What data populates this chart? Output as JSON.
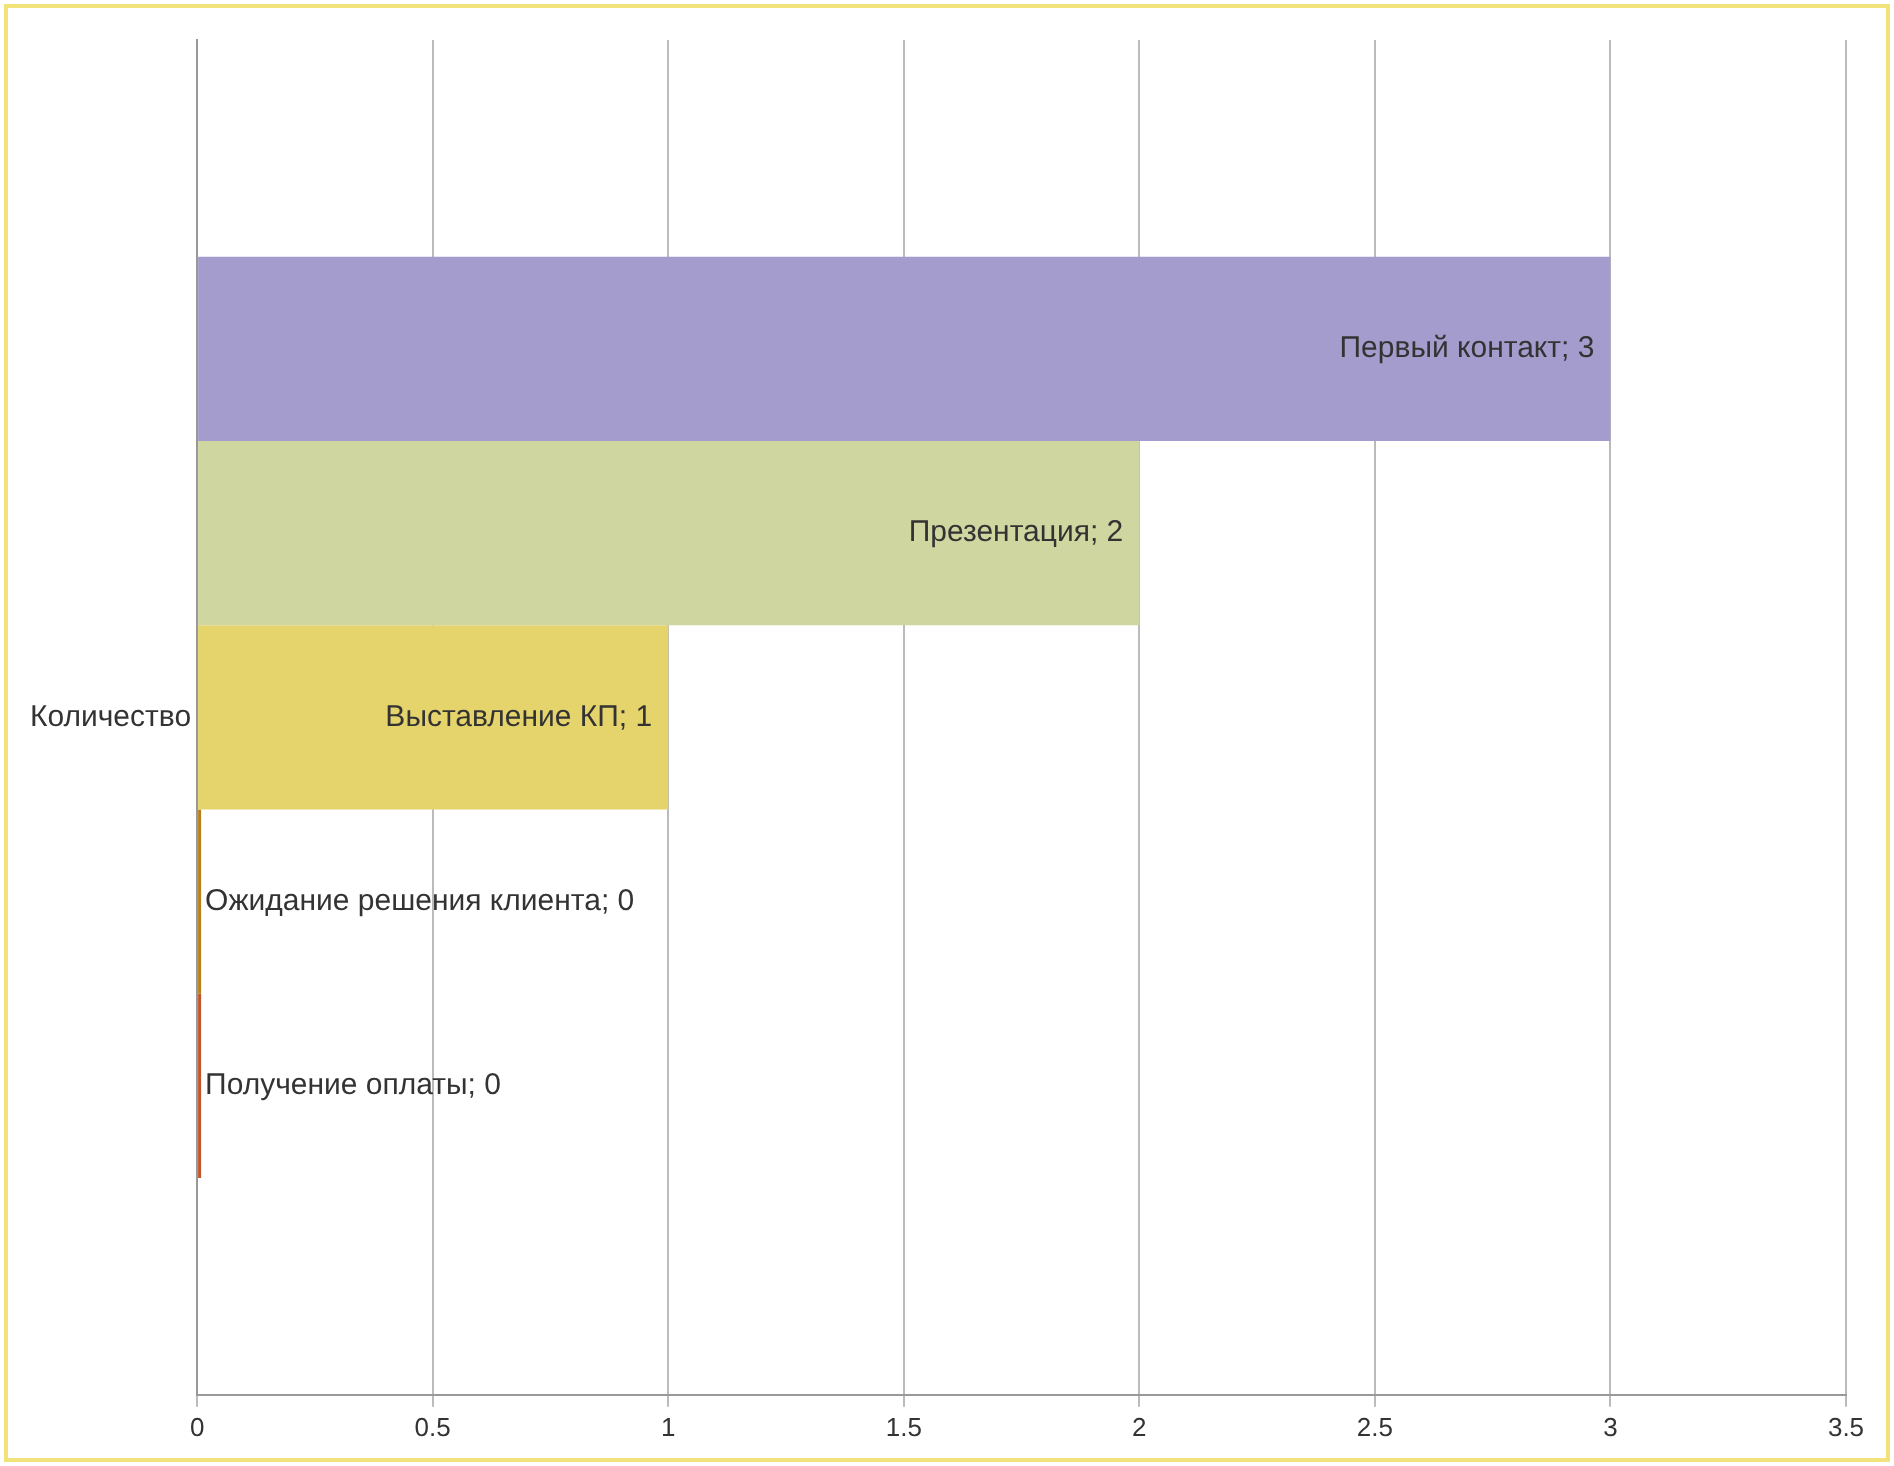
{
  "chart_data": {
    "type": "bar",
    "orientation": "horizontal",
    "categories": [
      "Количество"
    ],
    "series": [
      {
        "color": "#a39ccd",
        "values": [
          3
        ],
        "value_labels": [
          "Первый контакт; 3"
        ]
      },
      {
        "color": "#cfd69f",
        "values": [
          2
        ],
        "value_labels": [
          "Презентация; 2"
        ]
      },
      {
        "color": "#e5d46b",
        "values": [
          1
        ],
        "value_labels": [
          "Выставление КП; 1"
        ]
      },
      {
        "color": "#b87f1a",
        "values": [
          0
        ],
        "value_labels": [
          "Ожидание решения клиента; 0"
        ]
      },
      {
        "color": "#c4552a",
        "values": [
          0
        ],
        "value_labels": [
          "Получение оплаты; 0"
        ]
      }
    ],
    "xlim": [
      0,
      3.5
    ],
    "xticks": [
      0,
      0.5,
      1,
      1.5,
      2,
      2.5,
      3,
      3.5
    ],
    "grid": "x",
    "legend": false
  }
}
